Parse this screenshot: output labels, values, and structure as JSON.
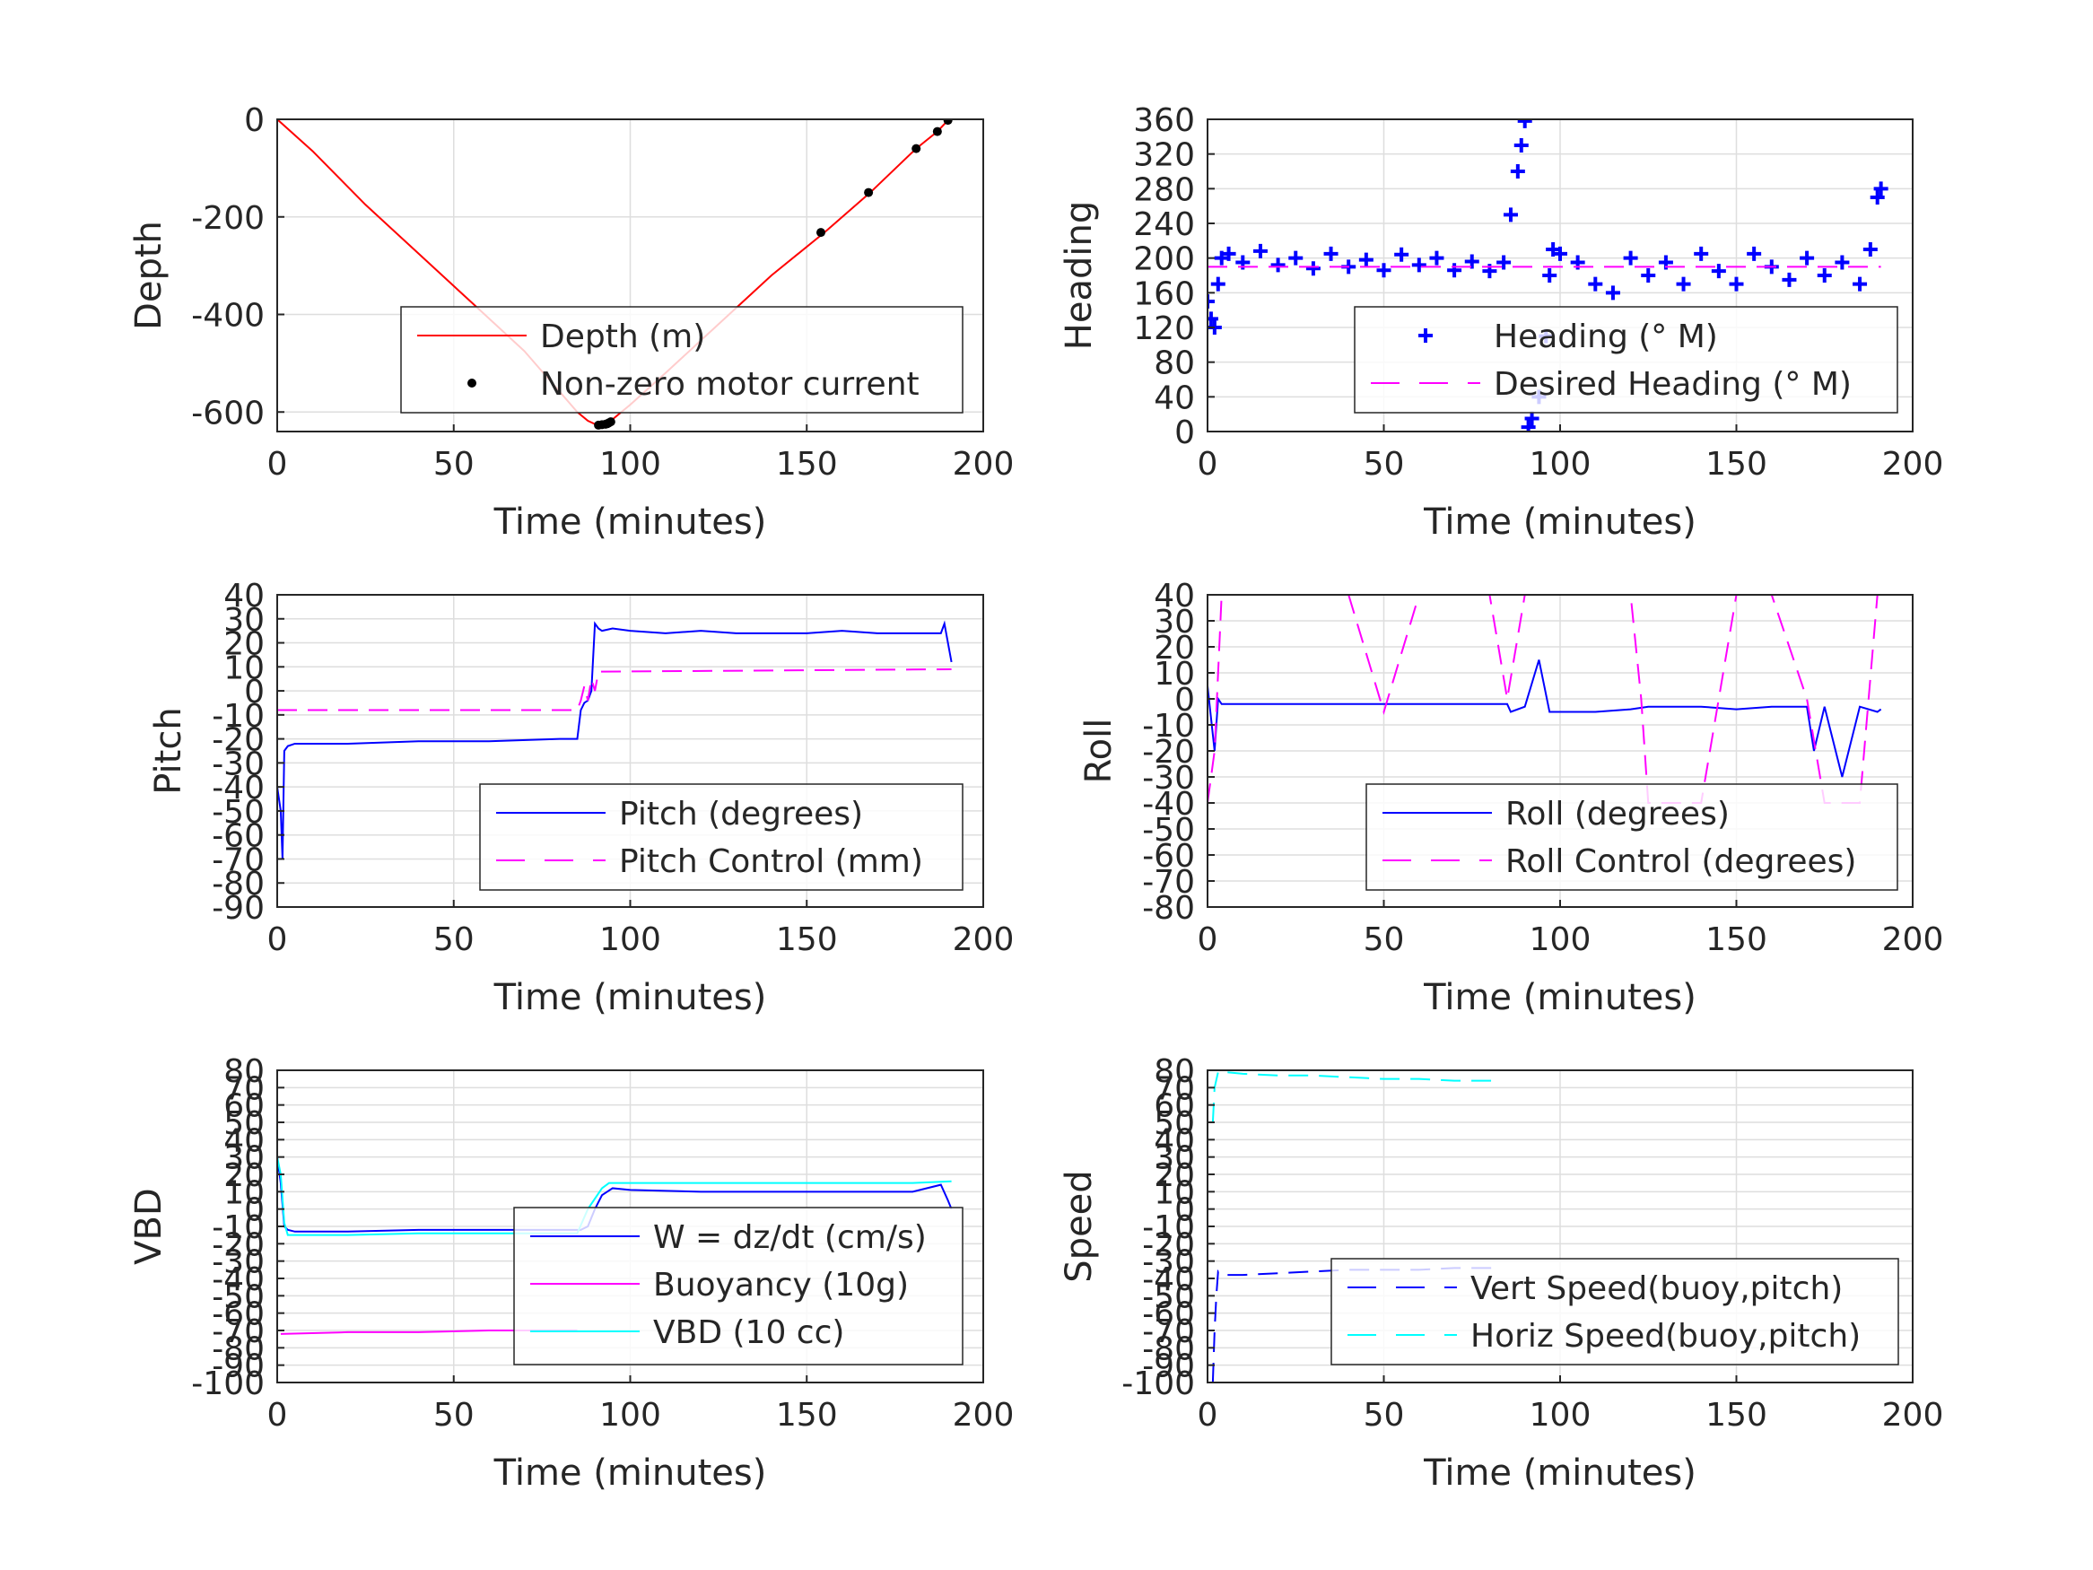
{
  "colors": {
    "depth": "#ff0000",
    "motor": "#000000",
    "blue": "#0000ff",
    "magenta": "#ff00ff",
    "cyan": "#00ffff",
    "grid": "#dedede",
    "axis": "#262626"
  },
  "chart_data": [
    {
      "id": "depth",
      "type": "line",
      "xlabel": "Time (minutes)",
      "ylabel": "Depth",
      "xlim": [
        0,
        200
      ],
      "ylim": [
        -640,
        0
      ],
      "xticks": [
        0,
        50,
        100,
        150,
        200
      ],
      "yticks": [
        -600,
        -400,
        -200,
        0
      ],
      "grid": "on",
      "legend_placement": "lower-right",
      "series": [
        {
          "name": "Depth (m)",
          "style": "line",
          "color": "#ff0000",
          "x": [
            0,
            10,
            25,
            40,
            55,
            70,
            85,
            88,
            91,
            95,
            100,
            110,
            125,
            140,
            155,
            168,
            181,
            187,
            190
          ],
          "y": [
            0,
            -65,
            -175,
            -275,
            -375,
            -475,
            -600,
            -618,
            -628,
            -615,
            -585,
            -520,
            -420,
            -320,
            -232,
            -150,
            -60,
            -25,
            -2
          ]
        },
        {
          "name": "Non-zero motor current",
          "style": "markers-dot",
          "color": "#000000",
          "x": [
            91,
            92,
            93,
            93.5,
            94,
            94.5,
            154,
            167.5,
            181,
            187,
            190
          ],
          "y": [
            -627,
            -626,
            -625,
            -624,
            -622,
            -620,
            -232,
            -150,
            -60,
            -25,
            -2
          ]
        }
      ]
    },
    {
      "id": "heading",
      "type": "line",
      "xlabel": "Time (minutes)",
      "ylabel": "Heading",
      "xlim": [
        0,
        200
      ],
      "ylim": [
        0,
        360
      ],
      "xticks": [
        0,
        50,
        100,
        150,
        200
      ],
      "yticks": [
        0,
        40,
        80,
        120,
        160,
        200,
        240,
        280,
        320,
        360
      ],
      "grid": "on",
      "legend_placement": "lower-right",
      "series": [
        {
          "name": "Heading (° M)",
          "style": "markers-plus",
          "color": "#0000ff",
          "x": [
            0,
            1,
            2,
            3,
            4,
            6,
            10,
            15,
            20,
            25,
            30,
            35,
            40,
            45,
            50,
            55,
            60,
            65,
            70,
            75,
            80,
            84,
            86,
            88,
            89,
            90,
            91,
            92,
            94,
            96,
            97,
            98,
            100,
            105,
            110,
            115,
            120,
            125,
            130,
            135,
            140,
            145,
            150,
            155,
            160,
            165,
            170,
            175,
            180,
            185,
            188,
            190,
            191
          ],
          "y": [
            150,
            130,
            120,
            170,
            200,
            205,
            195,
            208,
            192,
            200,
            188,
            205,
            190,
            198,
            186,
            204,
            192,
            200,
            186,
            196,
            185,
            195,
            250,
            300,
            330,
            358,
            5,
            15,
            40,
            110,
            180,
            210,
            205,
            195,
            170,
            160,
            200,
            180,
            195,
            170,
            205,
            185,
            170,
            205,
            190,
            175,
            200,
            180,
            195,
            170,
            210,
            270,
            280
          ]
        },
        {
          "name": "Desired Heading (° M)",
          "style": "dashed",
          "color": "#ff00ff",
          "x": [
            0,
            191
          ],
          "y": [
            190,
            190
          ]
        }
      ]
    },
    {
      "id": "pitch",
      "type": "line",
      "xlabel": "Time (minutes)",
      "ylabel": "Pitch",
      "xlim": [
        0,
        200
      ],
      "ylim": [
        -90,
        40
      ],
      "xticks": [
        0,
        50,
        100,
        150,
        200
      ],
      "yticks": [
        -90,
        -80,
        -70,
        -60,
        -50,
        -40,
        -30,
        -20,
        -10,
        0,
        10,
        20,
        30,
        40
      ],
      "grid": "on",
      "legend_placement": "lower-right",
      "series": [
        {
          "name": "Pitch (degrees)",
          "style": "line",
          "color": "#0000ff",
          "x": [
            0,
            1,
            1.5,
            2,
            3,
            5,
            20,
            40,
            60,
            80,
            85,
            86,
            87,
            88,
            89,
            90,
            91,
            92,
            95,
            100,
            110,
            120,
            130,
            140,
            150,
            160,
            170,
            180,
            188,
            189,
            190,
            191
          ],
          "y": [
            -40,
            -50,
            -70,
            -25,
            -23,
            -22,
            -22,
            -21,
            -21,
            -20,
            -20,
            -8,
            -5,
            -4,
            0,
            28,
            26,
            25,
            26,
            25,
            24,
            25,
            24,
            24,
            24,
            25,
            24,
            24,
            24,
            28,
            20,
            12
          ]
        },
        {
          "name": "Pitch Control (mm)",
          "style": "dashed",
          "color": "#ff00ff",
          "x": [
            0,
            85,
            86,
            87,
            88,
            89,
            90,
            91,
            191
          ],
          "y": [
            -8,
            -8,
            -4,
            2,
            -4,
            5,
            0,
            8,
            9
          ]
        }
      ]
    },
    {
      "id": "roll",
      "type": "line",
      "xlabel": "Time (minutes)",
      "ylabel": "Roll",
      "xlim": [
        0,
        200
      ],
      "ylim": [
        -80,
        40
      ],
      "xticks": [
        0,
        50,
        100,
        150,
        200
      ],
      "yticks": [
        -80,
        -70,
        -60,
        -50,
        -40,
        -30,
        -20,
        -10,
        0,
        10,
        20,
        30,
        40
      ],
      "grid": "on",
      "legend_placement": "lower-right",
      "series": [
        {
          "name": "Roll (degrees)",
          "style": "line",
          "color": "#0000ff",
          "x": [
            0,
            2,
            3,
            4,
            5,
            10,
            15,
            20,
            25,
            30,
            40,
            50,
            60,
            70,
            80,
            85,
            86,
            90,
            94,
            97,
            100,
            110,
            120,
            125,
            130,
            140,
            150,
            160,
            170,
            172,
            175,
            180,
            185,
            190,
            191
          ],
          "y": [
            5,
            -20,
            0,
            -2,
            -2,
            -2,
            -2,
            -2,
            -2,
            -2,
            -2,
            -2,
            -2,
            -2,
            -2,
            -2,
            -5,
            -3,
            15,
            -5,
            -5,
            -5,
            -4,
            -3,
            -3,
            -3,
            -4,
            -3,
            -3,
            -20,
            -3,
            -30,
            -3,
            -5,
            -4
          ]
        },
        {
          "name": "Roll Control (degrees)",
          "style": "dashed",
          "color": "#ff00ff",
          "x": [
            0,
            2,
            4,
            10,
            20,
            30,
            40,
            50,
            60,
            70,
            80,
            85,
            90,
            100,
            110,
            120,
            123,
            125,
            130,
            140,
            150,
            160,
            170,
            175,
            180,
            185,
            190
          ],
          "y": [
            -40,
            -20,
            40,
            40,
            40,
            40,
            40,
            -5,
            40,
            40,
            40,
            0,
            40,
            40,
            40,
            40,
            0,
            -40,
            -40,
            -40,
            40,
            40,
            0,
            -40,
            -40,
            -40,
            40
          ]
        }
      ]
    },
    {
      "id": "vbd",
      "type": "line",
      "xlabel": "Time (minutes)",
      "ylabel": "VBD",
      "xlim": [
        0,
        200
      ],
      "ylim": [
        -100,
        80
      ],
      "xticks": [
        0,
        50,
        100,
        150,
        200
      ],
      "yticks": [
        -100,
        -90,
        -80,
        -70,
        -60,
        -50,
        -40,
        -30,
        -20,
        -10,
        0,
        10,
        20,
        30,
        40,
        50,
        60,
        70,
        80
      ],
      "grid": "on",
      "legend_placement": "lower-right",
      "series": [
        {
          "name": "W = dz/dt (cm/s)",
          "style": "line",
          "color": "#0000ff",
          "x": [
            0,
            1,
            2,
            3,
            5,
            20,
            40,
            60,
            80,
            86,
            88,
            90,
            92,
            95,
            100,
            120,
            140,
            160,
            180,
            188,
            190,
            191
          ],
          "y": [
            30,
            15,
            -10,
            -12,
            -13,
            -13,
            -12,
            -12,
            -12,
            -12,
            -10,
            0,
            8,
            12,
            11,
            10,
            10,
            10,
            10,
            14,
            5,
            0
          ]
        },
        {
          "name": "Buoyancy (10g)",
          "style": "line",
          "color": "#ff00ff",
          "x": [
            1,
            20,
            40,
            60,
            85
          ],
          "y": [
            -72,
            -71,
            -71,
            -70,
            -70
          ]
        },
        {
          "name": "VBD (10 cc)",
          "style": "line",
          "color": "#00ffff",
          "x": [
            0,
            1,
            2,
            3,
            5,
            20,
            40,
            60,
            80,
            85,
            88,
            92,
            94,
            100,
            120,
            140,
            160,
            180,
            191
          ],
          "y": [
            30,
            20,
            -8,
            -15,
            -15,
            -15,
            -14,
            -14,
            -14,
            -14,
            0,
            12,
            15,
            15,
            15,
            15,
            15,
            15,
            16
          ]
        }
      ]
    },
    {
      "id": "speed",
      "type": "line",
      "xlabel": "Time (minutes)",
      "ylabel": "Speed",
      "xlim": [
        0,
        200
      ],
      "ylim": [
        -100,
        80
      ],
      "xticks": [
        0,
        50,
        100,
        150,
        200
      ],
      "yticks": [
        -100,
        -90,
        -80,
        -70,
        -60,
        -50,
        -40,
        -30,
        -20,
        -10,
        0,
        10,
        20,
        30,
        40,
        50,
        60,
        70,
        80
      ],
      "grid": "on",
      "legend_placement": "lower-right",
      "series": [
        {
          "name": "Vert Speed(buoy,pitch)",
          "style": "dashed",
          "color": "#0000ff",
          "x": [
            1.5,
            2,
            2.5,
            3,
            4,
            10,
            20,
            30,
            40,
            50,
            60,
            70,
            80,
            83
          ],
          "y": [
            -100,
            -70,
            -50,
            -36,
            -38,
            -38,
            -37,
            -36,
            -35,
            -35,
            -35,
            -34,
            -34,
            -34
          ]
        },
        {
          "name": "Horiz Speed(buoy,pitch)",
          "style": "dashed",
          "color": "#00ffff",
          "x": [
            1.5,
            2,
            3,
            4,
            5,
            10,
            20,
            30,
            40,
            50,
            60,
            70,
            80,
            83
          ],
          "y": [
            50,
            70,
            79,
            80,
            79,
            78,
            77,
            77,
            76,
            75,
            75,
            74,
            74,
            74
          ]
        }
      ]
    }
  ]
}
